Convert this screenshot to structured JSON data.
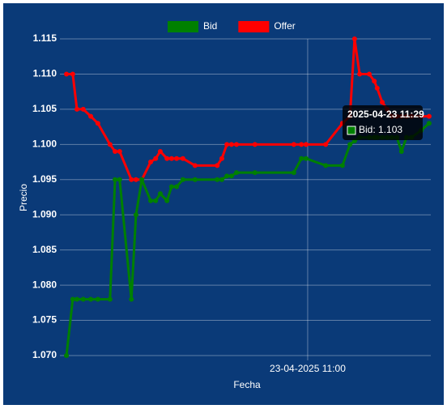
{
  "chart_data": {
    "type": "line",
    "x_label": "Fecha",
    "y_label": "Precio",
    "x": [
      602.4,
      603.9,
      604.9,
      606.4,
      608.2,
      609.9,
      612.8,
      614.0,
      615.1,
      617.9,
      619.0,
      620.4,
      622.5,
      623.7,
      624.8,
      626.4,
      627.5,
      628.7,
      630.2,
      633.1,
      638.4,
      639.5,
      640.7,
      641.8,
      643.0,
      647.4,
      656.7,
      658.5,
      659.6,
      664.3,
      668.3,
      670.1,
      671.2,
      672.4,
      674.7,
      675.9,
      676.6,
      677.8,
      679.0,
      680.1,
      681.3,
      682.4,
      683.6,
      684.8,
      687.1,
      689.0
    ],
    "series": [
      {
        "name": "Bid",
        "color": "#008000",
        "values": [
          1.07,
          1.078,
          1.078,
          1.078,
          1.078,
          1.078,
          1.078,
          1.095,
          1.095,
          1.078,
          1.09,
          1.095,
          1.092,
          1.092,
          1.093,
          1.092,
          1.094,
          1.094,
          1.095,
          1.095,
          1.095,
          1.095,
          1.0955,
          1.0955,
          1.096,
          1.096,
          1.096,
          1.098,
          1.098,
          1.097,
          1.097,
          1.1,
          1.1005,
          1.101,
          1.101,
          1.101,
          1.101,
          1.101,
          1.101,
          1.101,
          1.101,
          1.099,
          1.101,
          1.101,
          1.102,
          1.103
        ]
      },
      {
        "name": "Offer",
        "color": "#ff0000",
        "values": [
          1.11,
          1.11,
          1.105,
          1.105,
          1.104,
          1.103,
          1.1,
          1.099,
          1.099,
          1.095,
          1.095,
          1.095,
          1.0975,
          1.098,
          1.099,
          1.098,
          1.098,
          1.098,
          1.098,
          1.097,
          1.097,
          1.098,
          1.1,
          1.1,
          1.1,
          1.1,
          1.1,
          1.1,
          1.1,
          1.1,
          1.103,
          1.104,
          1.115,
          1.11,
          1.11,
          1.109,
          1.108,
          1.106,
          1.105,
          1.104,
          1.104,
          1.104,
          1.104,
          1.104,
          1.104,
          1.104
        ]
      }
    ],
    "xlim": [
      602,
      689.4
    ],
    "xticks": [
      {
        "value": 660,
        "label": "23-04-2025 11:00"
      }
    ],
    "ylim": [
      1.07,
      1.115
    ],
    "yticks": [
      {
        "value": 1.07,
        "label": "1.070"
      },
      1.075,
      {
        "value": 1.08,
        "label": "1.080"
      },
      1.085,
      {
        "value": 1.09,
        "label": "1.090"
      },
      1.095,
      {
        "value": 1.1,
        "label": "1.100"
      },
      1.105,
      {
        "value": 1.11,
        "label": "1.110"
      },
      1.115
    ],
    "grid": true,
    "legend": "top",
    "tooltip": {
      "title": "2025-04-23 11:29",
      "label": "Bid: 1.103"
    }
  }
}
